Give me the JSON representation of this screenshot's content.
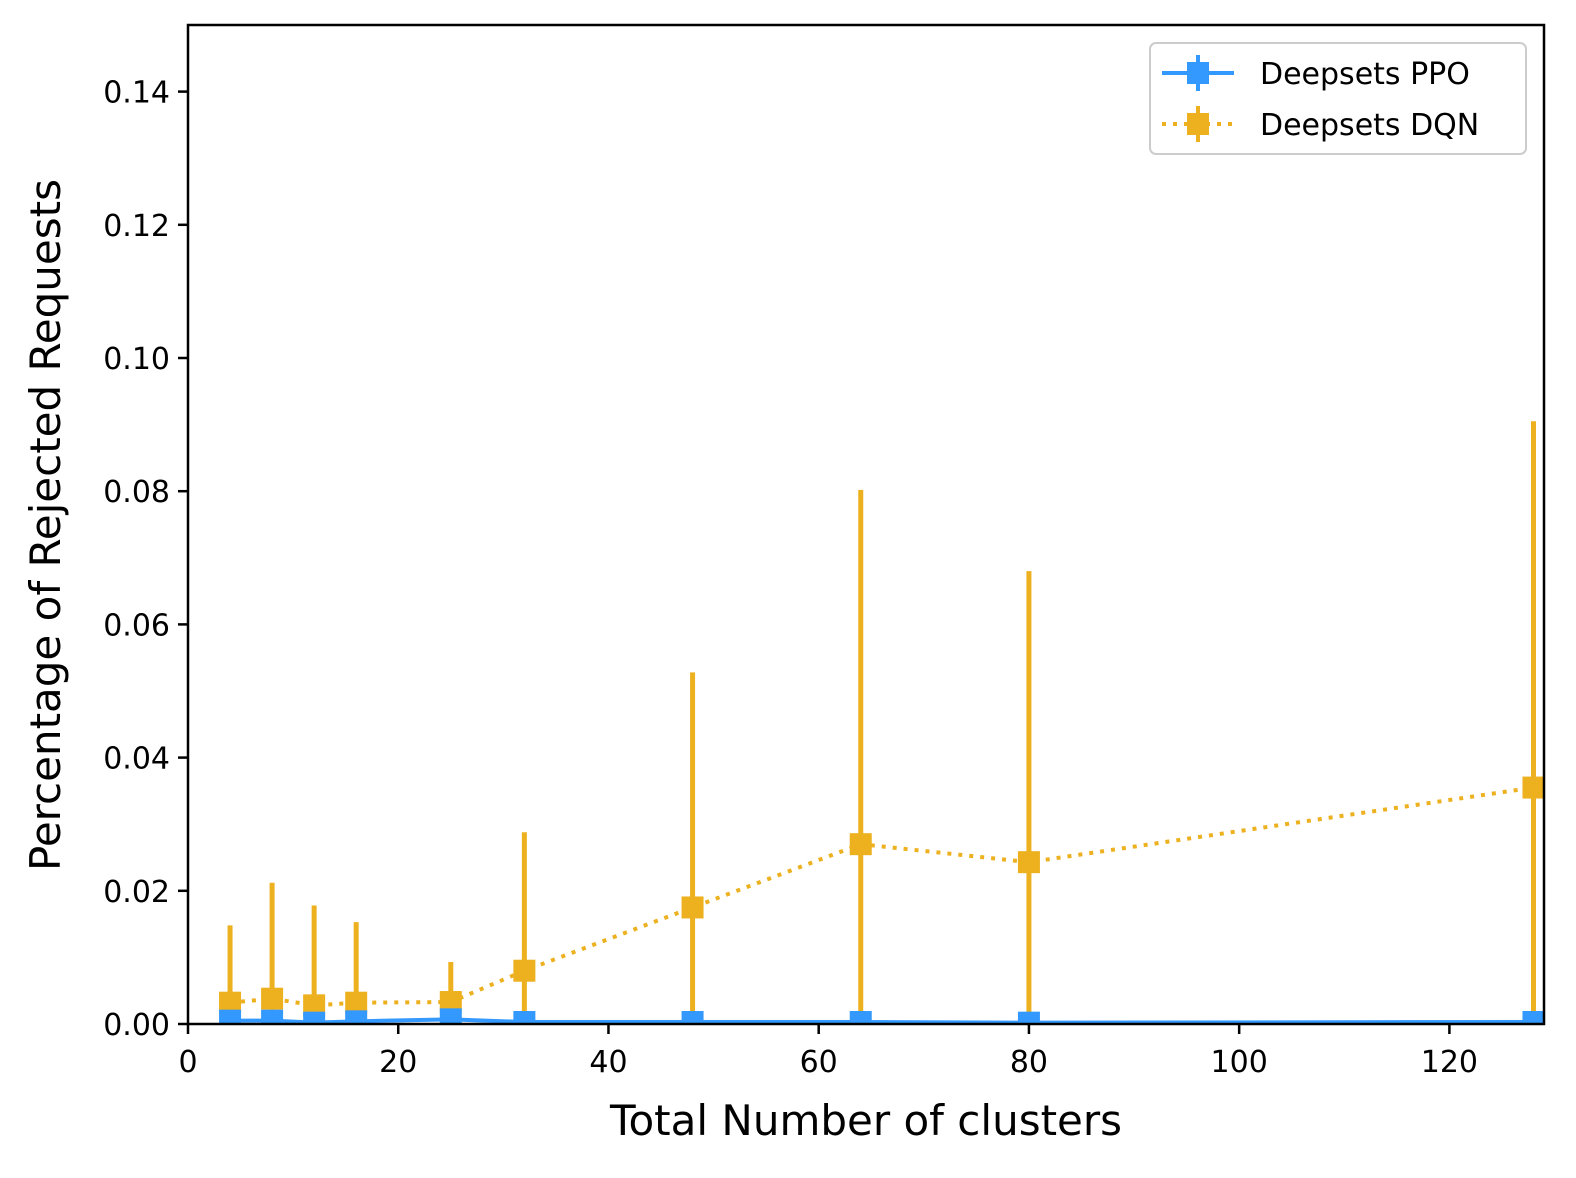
{
  "chart_data": {
    "type": "line",
    "title": "",
    "xlabel": "Total Number of clusters",
    "ylabel": "Percentage of Rejected Requests",
    "xlim": [
      0,
      129
    ],
    "ylim": [
      0,
      0.15
    ],
    "xticks": [
      0,
      20,
      40,
      60,
      80,
      100,
      120
    ],
    "xtick_labels": [
      "0",
      "20",
      "40",
      "60",
      "80",
      "100",
      "120"
    ],
    "yticks": [
      0,
      0.02,
      0.04,
      0.06,
      0.08,
      0.1,
      0.12,
      0.14
    ],
    "ytick_labels": [
      "0.00",
      "0.02",
      "0.04",
      "0.06",
      "0.08",
      "0.10",
      "0.12",
      "0.14"
    ],
    "grid": false,
    "legend_position": "top-right",
    "series": [
      {
        "name": "Deepsets PPO",
        "color": "#3399FF",
        "linestyle": "solid",
        "marker": "square",
        "x": [
          4,
          8,
          12,
          16,
          25,
          32,
          48,
          64,
          80,
          128
        ],
        "y": [
          0.0005,
          0.0005,
          0.0002,
          0.0004,
          0.0007,
          0.0003,
          0.0003,
          0.0003,
          0.0002,
          0.0003
        ],
        "err_upper": [
          0.0008,
          0.0008,
          0.0004,
          0.0006,
          0.001,
          0.0005,
          0.0005,
          0.0005,
          0.0004,
          0.0005
        ]
      },
      {
        "name": "Deepsets DQN",
        "color": "#EDB120",
        "linestyle": "dotted",
        "marker": "square",
        "x": [
          4,
          8,
          12,
          16,
          25,
          32,
          48,
          64,
          80,
          128
        ],
        "y": [
          0.0032,
          0.0038,
          0.0028,
          0.0032,
          0.0033,
          0.008,
          0.0175,
          0.027,
          0.0243,
          0.0355
        ],
        "err_upper": [
          0.0148,
          0.0212,
          0.0178,
          0.0153,
          0.0093,
          0.0288,
          0.0528,
          0.0802,
          0.068,
          0.0905
        ]
      }
    ]
  }
}
